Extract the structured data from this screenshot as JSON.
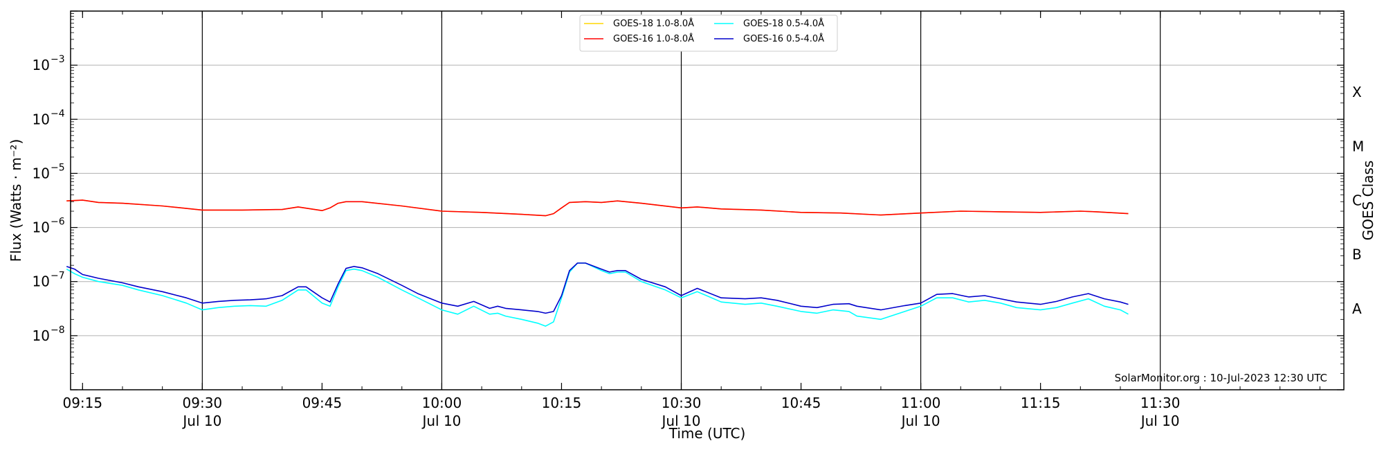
{
  "chart_data": {
    "type": "line",
    "xlabel": "Time (UTC)",
    "ylabel": "Flux (Watts · m⁻²)",
    "y2label": "GOES Class",
    "yscale": "log",
    "ylim": [
      1e-09,
      0.01
    ],
    "x_range": [
      "09:13:30",
      "11:53:00"
    ],
    "x_ticks": [
      {
        "time": "09:15",
        "label": "09:15",
        "date": ""
      },
      {
        "time": "09:30",
        "label": "09:30",
        "date": "Jul 10"
      },
      {
        "time": "09:45",
        "label": "09:45",
        "date": ""
      },
      {
        "time": "10:00",
        "label": "10:00",
        "date": "Jul 10"
      },
      {
        "time": "10:15",
        "label": "10:15",
        "date": ""
      },
      {
        "time": "10:30",
        "label": "10:30",
        "date": "Jul 10"
      },
      {
        "time": "10:45",
        "label": "10:45",
        "date": ""
      },
      {
        "time": "11:00",
        "label": "11:00",
        "date": "Jul 10"
      },
      {
        "time": "11:15",
        "label": "11:15",
        "date": ""
      },
      {
        "time": "11:30",
        "label": "11:30",
        "date": "Jul 10"
      }
    ],
    "vertical_lines": [
      "09:30",
      "10:00",
      "10:30",
      "11:00",
      "11:30"
    ],
    "y_ticks": [
      {
        "value": 1e-08,
        "base": "10",
        "exp": "−8"
      },
      {
        "value": 1e-07,
        "base": "10",
        "exp": "−7"
      },
      {
        "value": 1e-06,
        "base": "10",
        "exp": "−6"
      },
      {
        "value": 1e-05,
        "base": "10",
        "exp": "−5"
      },
      {
        "value": 0.0001,
        "base": "10",
        "exp": "−4"
      },
      {
        "value": 0.001,
        "base": "10",
        "exp": "−3"
      }
    ],
    "grid_levels": [
      1e-08,
      1e-07,
      1e-06,
      1e-05,
      0.0001,
      0.001
    ],
    "goes_classes": [
      {
        "label": "A",
        "value": 3.16e-08
      },
      {
        "label": "B",
        "value": 3.16e-07
      },
      {
        "label": "C",
        "value": 3.16e-06
      },
      {
        "label": "M",
        "value": 3.16e-05
      },
      {
        "label": "X",
        "value": 0.000316
      }
    ],
    "legend_position": "top-center",
    "legend": [
      {
        "name": "GOES-18 1.0-8.0Å",
        "color": "#ffd700"
      },
      {
        "name": "GOES-18 0.5-4.0Å",
        "color": "#00ffff"
      },
      {
        "name": "GOES-16 1.0-8.0Å",
        "color": "#ff0000"
      },
      {
        "name": "GOES-16 0.5-4.0Å",
        "color": "#0000cc"
      }
    ],
    "series": [
      {
        "name": "GOES-18 1.0-8.0Å",
        "color": "#ffd700",
        "width": 1.6,
        "points": [
          [
            "09:13",
            3.1e-06
          ],
          [
            "09:15",
            3.2e-06
          ],
          [
            "09:17",
            2.9e-06
          ],
          [
            "09:20",
            2.8e-06
          ],
          [
            "09:25",
            2.5e-06
          ],
          [
            "09:30",
            2.1e-06
          ],
          [
            "09:35",
            2.1e-06
          ],
          [
            "09:40",
            2.15e-06
          ],
          [
            "09:42",
            2.4e-06
          ],
          [
            "09:45",
            2.05e-06
          ],
          [
            "09:46",
            2.3e-06
          ],
          [
            "09:47",
            2.8e-06
          ],
          [
            "09:48",
            3e-06
          ],
          [
            "09:50",
            3e-06
          ],
          [
            "09:55",
            2.5e-06
          ],
          [
            "10:00",
            2e-06
          ],
          [
            "10:05",
            1.9e-06
          ],
          [
            "10:10",
            1.75e-06
          ],
          [
            "10:13",
            1.65e-06
          ],
          [
            "10:14",
            1.8e-06
          ],
          [
            "10:15",
            2.3e-06
          ],
          [
            "10:16",
            2.9e-06
          ],
          [
            "10:18",
            3e-06
          ],
          [
            "10:20",
            2.9e-06
          ],
          [
            "10:22",
            3.1e-06
          ],
          [
            "10:25",
            2.8e-06
          ],
          [
            "10:30",
            2.3e-06
          ],
          [
            "10:32",
            2.4e-06
          ],
          [
            "10:35",
            2.2e-06
          ],
          [
            "10:40",
            2.1e-06
          ],
          [
            "10:45",
            1.9e-06
          ],
          [
            "10:50",
            1.85e-06
          ],
          [
            "10:55",
            1.7e-06
          ],
          [
            "11:00",
            1.85e-06
          ],
          [
            "11:05",
            2e-06
          ],
          [
            "11:10",
            1.95e-06
          ],
          [
            "11:15",
            1.9e-06
          ],
          [
            "11:20",
            2e-06
          ],
          [
            "11:22",
            1.95e-06
          ],
          [
            "11:26",
            1.8e-06
          ]
        ]
      },
      {
        "name": "GOES-16 1.0-8.0Å",
        "color": "#ff0000",
        "width": 1.6,
        "points": [
          [
            "09:13",
            3.1e-06
          ],
          [
            "09:15",
            3.2e-06
          ],
          [
            "09:17",
            2.9e-06
          ],
          [
            "09:20",
            2.8e-06
          ],
          [
            "09:25",
            2.5e-06
          ],
          [
            "09:30",
            2.1e-06
          ],
          [
            "09:35",
            2.1e-06
          ],
          [
            "09:40",
            2.15e-06
          ],
          [
            "09:42",
            2.4e-06
          ],
          [
            "09:45",
            2.05e-06
          ],
          [
            "09:46",
            2.3e-06
          ],
          [
            "09:47",
            2.8e-06
          ],
          [
            "09:48",
            3e-06
          ],
          [
            "09:50",
            3e-06
          ],
          [
            "09:55",
            2.5e-06
          ],
          [
            "10:00",
            2e-06
          ],
          [
            "10:05",
            1.9e-06
          ],
          [
            "10:10",
            1.75e-06
          ],
          [
            "10:13",
            1.65e-06
          ],
          [
            "10:14",
            1.8e-06
          ],
          [
            "10:15",
            2.3e-06
          ],
          [
            "10:16",
            2.9e-06
          ],
          [
            "10:18",
            3e-06
          ],
          [
            "10:20",
            2.9e-06
          ],
          [
            "10:22",
            3.1e-06
          ],
          [
            "10:25",
            2.8e-06
          ],
          [
            "10:30",
            2.3e-06
          ],
          [
            "10:32",
            2.4e-06
          ],
          [
            "10:35",
            2.2e-06
          ],
          [
            "10:40",
            2.1e-06
          ],
          [
            "10:45",
            1.9e-06
          ],
          [
            "10:50",
            1.85e-06
          ],
          [
            "10:55",
            1.7e-06
          ],
          [
            "11:00",
            1.85e-06
          ],
          [
            "11:05",
            2e-06
          ],
          [
            "11:10",
            1.95e-06
          ],
          [
            "11:15",
            1.9e-06
          ],
          [
            "11:20",
            2e-06
          ],
          [
            "11:22",
            1.95e-06
          ],
          [
            "11:26",
            1.8e-06
          ]
        ]
      },
      {
        "name": "GOES-18 0.5-4.0Å",
        "color": "#00ffff",
        "width": 1.6,
        "points": [
          [
            "09:13",
            1.7e-07
          ],
          [
            "09:14",
            1.4e-07
          ],
          [
            "09:15",
            1.2e-07
          ],
          [
            "09:17",
            1e-07
          ],
          [
            "09:20",
            8.5e-08
          ],
          [
            "09:22",
            7e-08
          ],
          [
            "09:25",
            5.5e-08
          ],
          [
            "09:28",
            4e-08
          ],
          [
            "09:30",
            3e-08
          ],
          [
            "09:32",
            3.3e-08
          ],
          [
            "09:34",
            3.5e-08
          ],
          [
            "09:36",
            3.6e-08
          ],
          [
            "09:38",
            3.5e-08
          ],
          [
            "09:40",
            4.5e-08
          ],
          [
            "09:42",
            7e-08
          ],
          [
            "09:43",
            7e-08
          ],
          [
            "09:45",
            4e-08
          ],
          [
            "09:46",
            3.5e-08
          ],
          [
            "09:47",
            8e-08
          ],
          [
            "09:48",
            1.6e-07
          ],
          [
            "09:49",
            1.7e-07
          ],
          [
            "09:50",
            1.6e-07
          ],
          [
            "09:52",
            1.2e-07
          ],
          [
            "09:55",
            7e-08
          ],
          [
            "09:57",
            5e-08
          ],
          [
            "10:00",
            3e-08
          ],
          [
            "10:02",
            2.5e-08
          ],
          [
            "10:04",
            3.5e-08
          ],
          [
            "10:06",
            2.5e-08
          ],
          [
            "10:07",
            2.6e-08
          ],
          [
            "10:08",
            2.3e-08
          ],
          [
            "10:10",
            2e-08
          ],
          [
            "10:12",
            1.7e-08
          ],
          [
            "10:13",
            1.5e-08
          ],
          [
            "10:14",
            1.8e-08
          ],
          [
            "10:15",
            5e-08
          ],
          [
            "10:16",
            1.5e-07
          ],
          [
            "10:17",
            2.2e-07
          ],
          [
            "10:18",
            2.2e-07
          ],
          [
            "10:20",
            1.6e-07
          ],
          [
            "10:21",
            1.4e-07
          ],
          [
            "10:22",
            1.5e-07
          ],
          [
            "10:23",
            1.5e-07
          ],
          [
            "10:25",
            1e-07
          ],
          [
            "10:28",
            7e-08
          ],
          [
            "10:30",
            5e-08
          ],
          [
            "10:32",
            6.5e-08
          ],
          [
            "10:35",
            4.2e-08
          ],
          [
            "10:38",
            3.8e-08
          ],
          [
            "10:40",
            4e-08
          ],
          [
            "10:42",
            3.5e-08
          ],
          [
            "10:45",
            2.8e-08
          ],
          [
            "10:47",
            2.6e-08
          ],
          [
            "10:49",
            3e-08
          ],
          [
            "10:51",
            2.8e-08
          ],
          [
            "10:52",
            2.3e-08
          ],
          [
            "10:55",
            2e-08
          ],
          [
            "10:58",
            2.8e-08
          ],
          [
            "11:00",
            3.5e-08
          ],
          [
            "11:02",
            5e-08
          ],
          [
            "11:04",
            5e-08
          ],
          [
            "11:06",
            4.2e-08
          ],
          [
            "11:08",
            4.5e-08
          ],
          [
            "11:10",
            4e-08
          ],
          [
            "11:12",
            3.3e-08
          ],
          [
            "11:15",
            3e-08
          ],
          [
            "11:17",
            3.3e-08
          ],
          [
            "11:19",
            4e-08
          ],
          [
            "11:21",
            4.8e-08
          ],
          [
            "11:23",
            3.5e-08
          ],
          [
            "11:25",
            3e-08
          ],
          [
            "11:26",
            2.5e-08
          ]
        ]
      },
      {
        "name": "GOES-16 0.5-4.0Å",
        "color": "#0000cc",
        "width": 1.6,
        "points": [
          [
            "09:13",
            1.9e-07
          ],
          [
            "09:14",
            1.7e-07
          ],
          [
            "09:15",
            1.35e-07
          ],
          [
            "09:17",
            1.15e-07
          ],
          [
            "09:20",
            9.5e-08
          ],
          [
            "09:22",
            8e-08
          ],
          [
            "09:25",
            6.5e-08
          ],
          [
            "09:28",
            5e-08
          ],
          [
            "09:30",
            4e-08
          ],
          [
            "09:32",
            4.3e-08
          ],
          [
            "09:34",
            4.5e-08
          ],
          [
            "09:36",
            4.6e-08
          ],
          [
            "09:38",
            4.8e-08
          ],
          [
            "09:40",
            5.5e-08
          ],
          [
            "09:42",
            8e-08
          ],
          [
            "09:43",
            8e-08
          ],
          [
            "09:45",
            5e-08
          ],
          [
            "09:46",
            4.2e-08
          ],
          [
            "09:47",
            9e-08
          ],
          [
            "09:48",
            1.75e-07
          ],
          [
            "09:49",
            1.9e-07
          ],
          [
            "09:50",
            1.8e-07
          ],
          [
            "09:52",
            1.4e-07
          ],
          [
            "09:55",
            8.5e-08
          ],
          [
            "09:57",
            6e-08
          ],
          [
            "10:00",
            4e-08
          ],
          [
            "10:02",
            3.5e-08
          ],
          [
            "10:04",
            4.3e-08
          ],
          [
            "10:06",
            3.2e-08
          ],
          [
            "10:07",
            3.5e-08
          ],
          [
            "10:08",
            3.2e-08
          ],
          [
            "10:10",
            3e-08
          ],
          [
            "10:12",
            2.8e-08
          ],
          [
            "10:13",
            2.6e-08
          ],
          [
            "10:14",
            2.8e-08
          ],
          [
            "10:15",
            5.5e-08
          ],
          [
            "10:16",
            1.6e-07
          ],
          [
            "10:17",
            2.2e-07
          ],
          [
            "10:18",
            2.2e-07
          ],
          [
            "10:20",
            1.7e-07
          ],
          [
            "10:21",
            1.5e-07
          ],
          [
            "10:22",
            1.6e-07
          ],
          [
            "10:23",
            1.6e-07
          ],
          [
            "10:25",
            1.1e-07
          ],
          [
            "10:28",
            8e-08
          ],
          [
            "10:30",
            5.5e-08
          ],
          [
            "10:32",
            7.5e-08
          ],
          [
            "10:35",
            5e-08
          ],
          [
            "10:38",
            4.8e-08
          ],
          [
            "10:40",
            5e-08
          ],
          [
            "10:42",
            4.5e-08
          ],
          [
            "10:45",
            3.5e-08
          ],
          [
            "10:47",
            3.3e-08
          ],
          [
            "10:49",
            3.8e-08
          ],
          [
            "10:51",
            3.9e-08
          ],
          [
            "10:52",
            3.5e-08
          ],
          [
            "10:55",
            3e-08
          ],
          [
            "10:58",
            3.6e-08
          ],
          [
            "11:00",
            4e-08
          ],
          [
            "11:02",
            5.8e-08
          ],
          [
            "11:04",
            6e-08
          ],
          [
            "11:06",
            5.2e-08
          ],
          [
            "11:08",
            5.5e-08
          ],
          [
            "11:10",
            4.8e-08
          ],
          [
            "11:12",
            4.2e-08
          ],
          [
            "11:15",
            3.8e-08
          ],
          [
            "11:17",
            4.3e-08
          ],
          [
            "11:19",
            5.2e-08
          ],
          [
            "11:21",
            6e-08
          ],
          [
            "11:23",
            4.8e-08
          ],
          [
            "11:25",
            4.2e-08
          ],
          [
            "11:26",
            3.8e-08
          ]
        ]
      }
    ],
    "credit": "SolarMonitor.org : 10-Jul-2023 12:30 UTC"
  }
}
